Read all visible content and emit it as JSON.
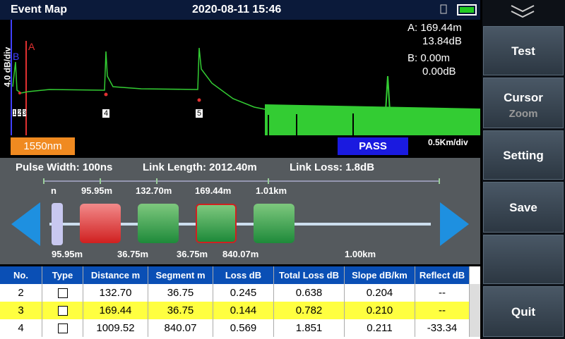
{
  "header": {
    "title": "Event Map",
    "datetime": "2020-08-11 15:46"
  },
  "trace": {
    "y_scale": "4.0 dB/div",
    "cursor_a_label": "A",
    "cursor_b_label": "B",
    "cursor_a": {
      "distance": "A: 169.44m",
      "level": "13.84dB"
    },
    "cursor_b": {
      "distance": "B: 0.00m",
      "level": "0.00dB"
    },
    "event_markers": [
      "1",
      "2",
      "3",
      "4",
      "5"
    ]
  },
  "status": {
    "wavelength": "1550nm",
    "result": "PASS",
    "x_scale": "0.5Km/div"
  },
  "summary": {
    "pulse_width": "Pulse Width: 100ns",
    "link_length": "Link Length: 2012.40m",
    "link_loss": "Link Loss: 1.8dB"
  },
  "event_map": {
    "top_labels": [
      "n",
      "95.95m",
      "132.70m",
      "169.44m",
      "1.01km"
    ],
    "bottom_labels": [
      "95.95m",
      "36.75m",
      "36.75m",
      "840.07m",
      "1.00km"
    ]
  },
  "table": {
    "columns": [
      "No.",
      "Type",
      "Distance m",
      "Segment m",
      "Loss dB",
      "Total Loss dB",
      "Slope dB/km",
      "Reflect dB"
    ],
    "rows": [
      [
        "2",
        "132.70",
        "36.75",
        "0.245",
        "0.638",
        "0.204",
        "--"
      ],
      [
        "3",
        "169.44",
        "36.75",
        "0.144",
        "0.782",
        "0.210",
        "--"
      ],
      [
        "4",
        "1009.52",
        "840.07",
        "0.569",
        "1.851",
        "0.211",
        "-33.34"
      ]
    ]
  },
  "sidebar": {
    "buttons": [
      "Test",
      "Cursor",
      "Zoom",
      "Setting",
      "Save",
      "Quit"
    ]
  }
}
